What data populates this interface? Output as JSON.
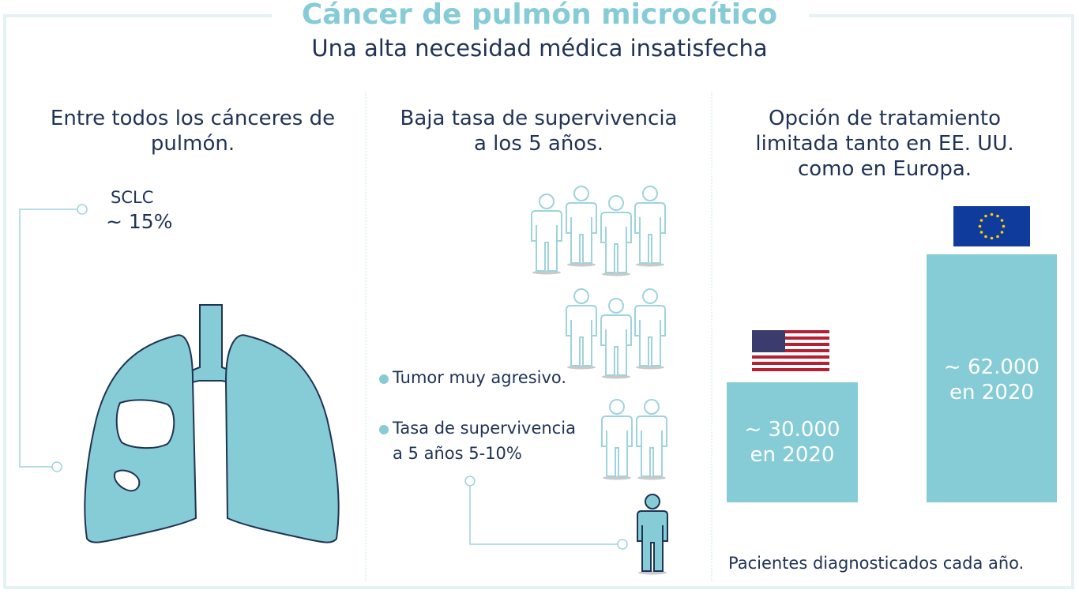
{
  "header": {
    "title": "Cáncer de pulmón microcítico",
    "subtitle": "Una alta necesidad médica insatisfecha"
  },
  "lung_column": {
    "heading_line1": "Entre todos los cánceres de",
    "heading_line2": "pulmón.",
    "callout_name": "SCLC",
    "callout_value": "~ 15%"
  },
  "survival_column": {
    "heading_line1": "Baja tasa de supervivencia",
    "heading_line2": "a los 5 años.",
    "bullet1": "Tumor muy agresivo.",
    "bullet2_line1": "Tasa de supervivencia",
    "bullet2_line2": "a 5 años 5-10%",
    "people_total": 10,
    "people_surviving": 1
  },
  "treatment_column": {
    "heading_line1": "Opción de tratamiento",
    "heading_line2": "limitada tanto en EE. UU.",
    "heading_line3": "como en Europa.",
    "footnote": "Pacientes diagnosticados cada año."
  },
  "chart_data": {
    "type": "bar",
    "categories": [
      "EE. UU.",
      "Europa"
    ],
    "values": [
      30000,
      62000
    ],
    "category_icons": [
      "us-flag-icon",
      "eu-flag-icon"
    ],
    "bars": [
      {
        "label_line1": "~ 30.000",
        "label_line2": "en 2020"
      },
      {
        "label_line1": "~ 62.000",
        "label_line2": "en 2020"
      }
    ],
    "title": "",
    "xlabel": "",
    "ylabel": ""
  },
  "colors": {
    "accent": "#86ccd6",
    "text": "#1f3356",
    "lung_outline": "#1f3356",
    "frame": "#e4f2f4"
  }
}
